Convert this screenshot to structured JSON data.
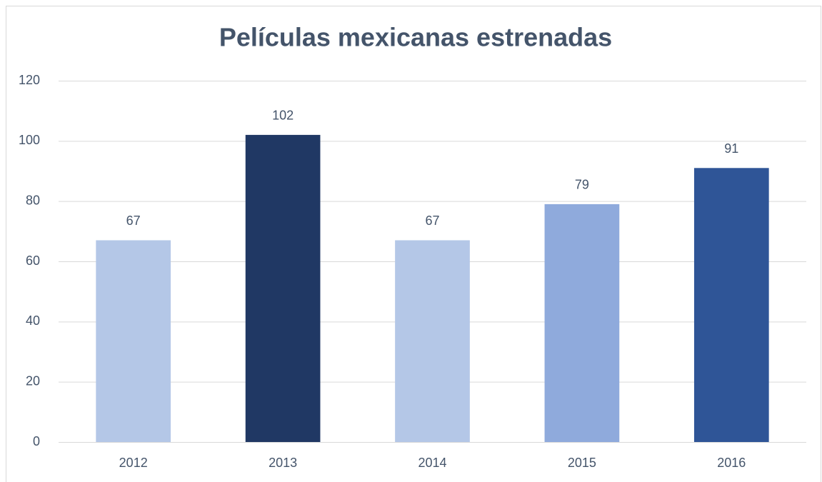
{
  "chart_data": {
    "type": "bar",
    "title": "Películas mexicanas estrenadas",
    "categories": [
      "2012",
      "2013",
      "2014",
      "2015",
      "2016"
    ],
    "values": [
      67,
      102,
      67,
      79,
      91
    ],
    "colors": [
      "#b4c7e7",
      "#203864",
      "#b4c7e7",
      "#8faadc",
      "#2f5597"
    ],
    "ylim": [
      0,
      120
    ],
    "yticks": [
      0,
      20,
      40,
      60,
      80,
      100,
      120
    ],
    "grid": true
  }
}
